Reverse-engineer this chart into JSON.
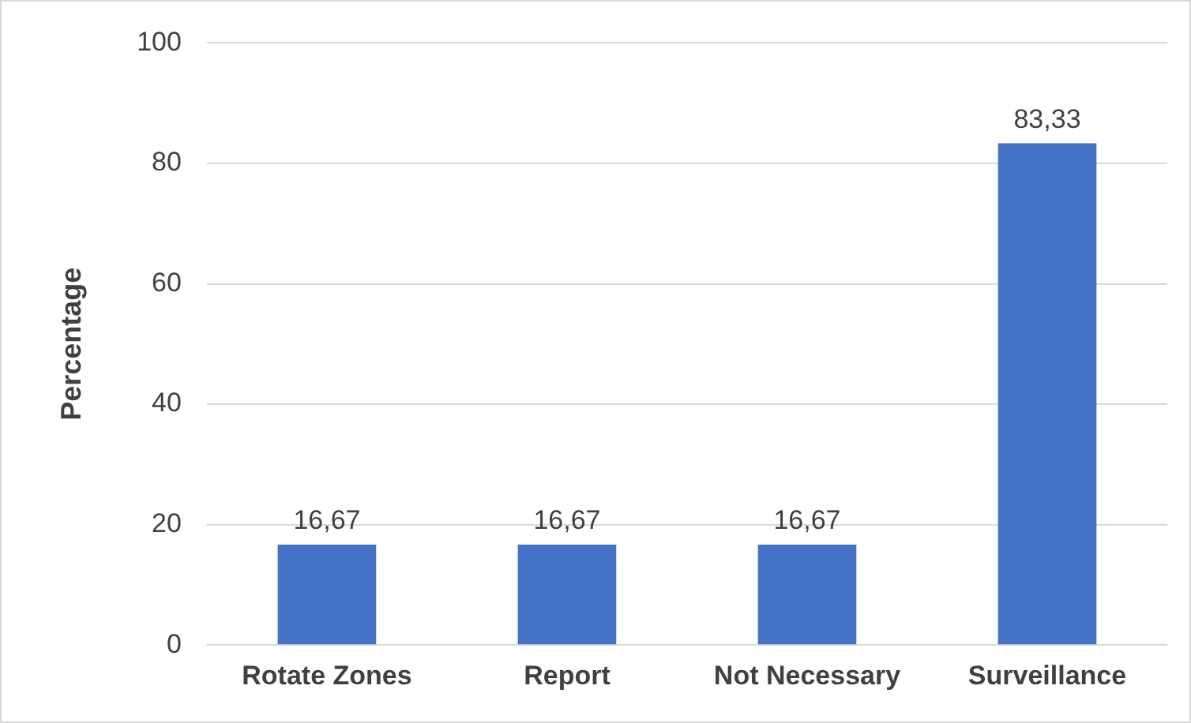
{
  "chart_data": {
    "type": "bar",
    "ylabel": "Percentage",
    "categories": [
      "Rotate Zones",
      "Report",
      "Not Necessary",
      "Surveillance"
    ],
    "values": [
      16.67,
      16.67,
      16.67,
      83.33
    ],
    "value_labels": [
      "16,67",
      "16,67",
      "16,67",
      "83,33"
    ],
    "color": "#4472c4",
    "ylim": [
      0,
      100
    ],
    "yticks": [
      0,
      20,
      40,
      60,
      80,
      100
    ],
    "grid": "y",
    "legend": false
  }
}
